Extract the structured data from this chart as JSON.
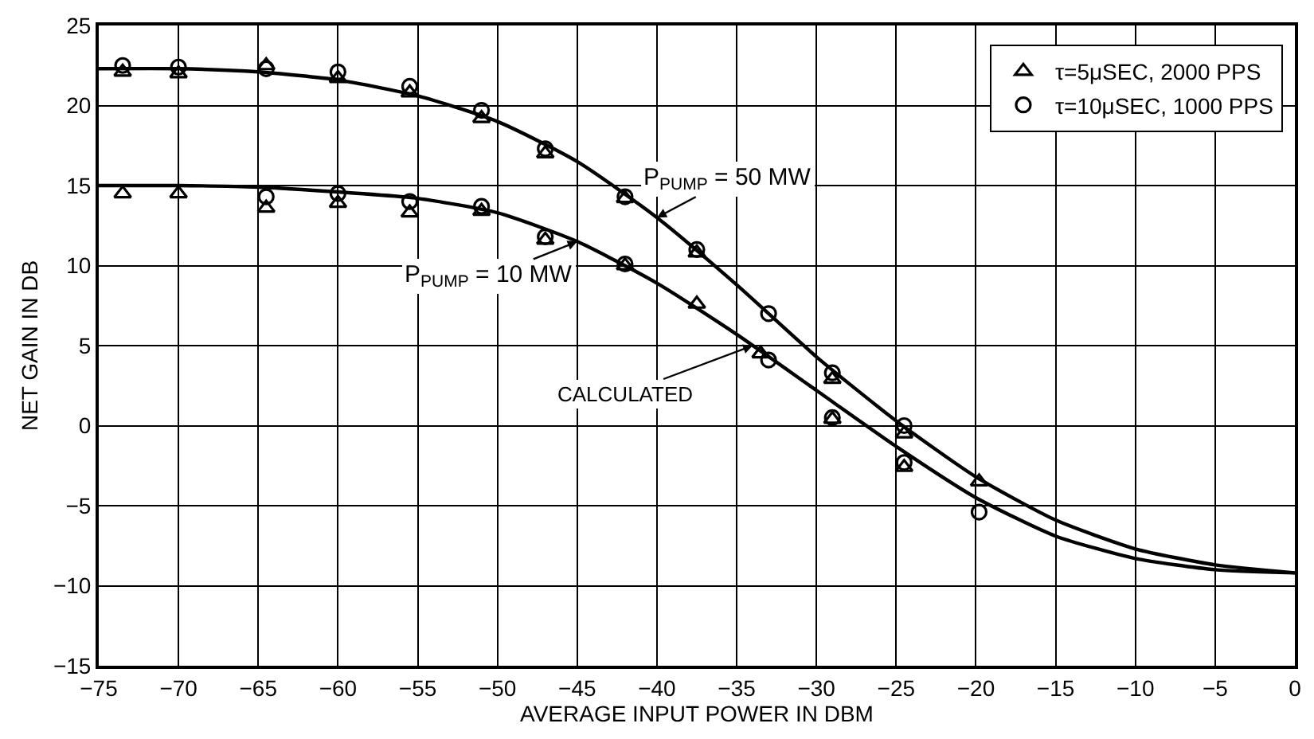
{
  "chart_data": {
    "type": "scatter",
    "xlabel": "AVERAGE INPUT POWER IN DBM",
    "ylabel": "NET GAIN IN DB",
    "xlim": [
      -75,
      0
    ],
    "xticks": [
      -75,
      -70,
      -65,
      -60,
      -55,
      -50,
      -45,
      -40,
      -35,
      -30,
      -25,
      -20,
      -15,
      -10,
      -5,
      0
    ],
    "ylim": [
      -15,
      25
    ],
    "yticks": [
      -15,
      -10,
      -5,
      0,
      5,
      10,
      15,
      20,
      25
    ],
    "grid": true,
    "legend": "top right",
    "annotations": [
      {
        "text": "CALCULATED",
        "x": -34,
        "y": 5
      }
    ],
    "series": [
      {
        "type": "line",
        "name": "P$_{PUMP}$ = 50 MW",
        "color": "#000000",
        "line_style": "solid",
        "marker": "none",
        "x": [
          -75,
          -70,
          -65,
          -60,
          -55,
          -50,
          -45,
          -40,
          -35,
          -30,
          -25,
          -20,
          -15,
          -10,
          -5,
          0
        ],
        "values": [
          22.3,
          22.3,
          22.1,
          21.6,
          20.6,
          19.0,
          16.5,
          13.0,
          8.8,
          4.3,
          0.3,
          -3.2,
          -5.9,
          -7.7,
          -8.7,
          -9.2
        ]
      },
      {
        "type": "line",
        "name": "P$_{PUMP}$ = 10 MW",
        "color": "#000000",
        "line_style": "solid",
        "marker": "none",
        "x": [
          -75,
          -70,
          -65,
          -60,
          -55,
          -50,
          -45,
          -40,
          -35,
          -30,
          -25,
          -20,
          -15,
          -10,
          -5,
          0
        ],
        "values": [
          15.0,
          15.0,
          14.9,
          14.6,
          14.2,
          13.3,
          11.5,
          8.9,
          5.7,
          2.2,
          -1.3,
          -4.5,
          -6.9,
          -8.3,
          -9.0,
          -9.2
        ]
      },
      {
        "name": "τ=5μSEC, 2000 PPS",
        "color": "#000000",
        "marker": "triangle",
        "x": [
          -73.5,
          -70,
          -64.5,
          -60,
          -55.5,
          -51,
          -47,
          -42,
          -37.5,
          -29,
          -24.5,
          -19.8,
          -73.5,
          -70,
          -64.5,
          -60,
          -55.5,
          -51,
          -47,
          -42,
          -37.5,
          -33.5,
          -29,
          -24.5
        ],
        "values": [
          22.1,
          22.0,
          22.5,
          21.7,
          20.8,
          19.2,
          17.0,
          14.2,
          10.8,
          2.9,
          -0.5,
          -3.5,
          14.5,
          14.5,
          13.6,
          13.9,
          13.3,
          13.4,
          11.6,
          10.0,
          7.6,
          4.5,
          0.4,
          -2.6
        ]
      },
      {
        "name": "τ=10μSEC, 1000 PPS",
        "color": "#000000",
        "marker": "circle",
        "x": [
          -73.5,
          -70,
          -64.5,
          -60,
          -55.5,
          -51,
          -47,
          -42,
          -37.5,
          -33,
          -29,
          -24.5,
          -64.5,
          -60,
          -55.5,
          -51,
          -47,
          -42,
          -33,
          -29,
          -24.5,
          -19.8
        ],
        "values": [
          22.5,
          22.4,
          22.3,
          22.1,
          21.2,
          19.7,
          17.3,
          14.3,
          11.0,
          7.0,
          3.3,
          0.0,
          14.3,
          14.5,
          14.0,
          13.7,
          11.8,
          10.1,
          4.1,
          0.5,
          -2.3,
          -5.4
        ]
      }
    ]
  }
}
